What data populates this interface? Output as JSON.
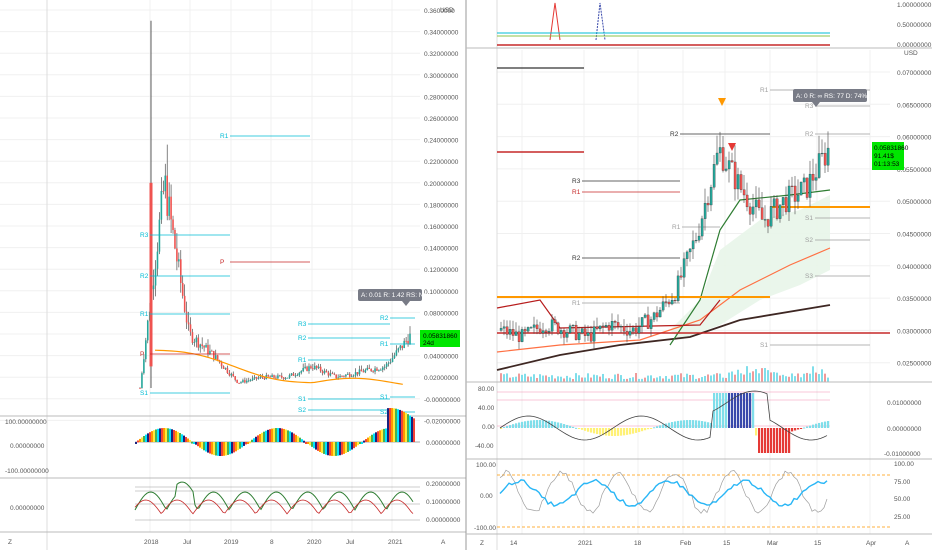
{
  "colors": {
    "up": "#26a69a",
    "down": "#ef5350",
    "accent_orange": "#ff9800",
    "cyan": "#00bcd4",
    "red": "#c62828",
    "price_badge": "#00e600",
    "tooltip_bg": "#787b86"
  },
  "left_panel": {
    "currency": "USD",
    "price_labels": [
      "0.3600000",
      "0.34000000",
      "0.32000000",
      "0.30000000",
      "0.28000000",
      "0.26000000",
      "0.24000000",
      "0.22000000",
      "0.20000000",
      "0.18000000",
      "0.16000000",
      "0.14000000",
      "0.12000000",
      "0.10000000",
      "0.08000000",
      "0.06000000",
      "0.04000000",
      "0.02000000",
      "-0.00000000",
      "-0.02000000"
    ],
    "price_badge": {
      "value": "0.05831860",
      "sub": "24d"
    },
    "tooltip": "A: 0.01 R: 1.42 RS: Na",
    "levels": [
      {
        "label": "R1",
        "color": "#00bcd4"
      },
      {
        "label": "R3",
        "color": "#00bcd4"
      },
      {
        "label": "R2",
        "color": "#00bcd4"
      },
      {
        "label": "P",
        "color": "#c62828"
      },
      {
        "label": "R1",
        "color": "#00bcd4"
      },
      {
        "label": "P",
        "color": "#c62828"
      },
      {
        "label": "R3",
        "color": "#00bcd4"
      },
      {
        "label": "R2",
        "color": "#00bcd4"
      },
      {
        "label": "R1",
        "color": "#00bcd4"
      },
      {
        "label": "R2",
        "color": "#00bcd4"
      },
      {
        "label": "R1",
        "color": "#00bcd4"
      },
      {
        "label": "S1",
        "color": "#00bcd4"
      },
      {
        "label": "S2",
        "color": "#00bcd4"
      },
      {
        "label": "S1",
        "color": "#00bcd4"
      },
      {
        "label": "S2",
        "color": "#00bcd4"
      },
      {
        "label": "S1",
        "color": "#00bcd4"
      }
    ],
    "osc1_labels": [
      "100.00000000",
      "0.00000000",
      "-100.00000000"
    ],
    "osc1_right": "0.00000000",
    "osc2_left": "0.00000000",
    "osc2_right": [
      "0.20000000",
      "0.10000000",
      "0.00000000"
    ],
    "time_labels": [
      "2018",
      "Jul",
      "2019",
      "8",
      "2020",
      "Jul",
      "2021"
    ],
    "corner_left": "Z",
    "corner_right": "A"
  },
  "right_panel": {
    "currency": "USD",
    "top_labels": [
      "1.00000000",
      "0.50000000",
      "0.00000000"
    ],
    "price_labels": [
      "0.07000000",
      "0.06500000",
      "0.06000000",
      "0.05500000",
      "0.05000000",
      "0.04500000",
      "0.04000000",
      "0.03500000",
      "0.03000000",
      "0.02500000"
    ],
    "price_badge": {
      "value": "0.05831860",
      "line2": "91.41$",
      "line3": "01:13:53"
    },
    "tooltip": "A: 0 R: ∞ RS: 77 D: 74%",
    "levels": [
      {
        "label": "R1",
        "color": "#9e9e9e"
      },
      {
        "label": "R3",
        "color": "#9e9e9e"
      },
      {
        "label": "R2",
        "color": "#333333"
      },
      {
        "label": "R2",
        "color": "#9e9e9e"
      },
      {
        "label": "R3",
        "color": "#333333"
      },
      {
        "label": "R1",
        "color": "#c62828"
      },
      {
        "label": "S1",
        "color": "#9e9e9e"
      },
      {
        "label": "R1",
        "color": "#9e9e9e"
      },
      {
        "label": "S2",
        "color": "#9e9e9e"
      },
      {
        "label": "R2",
        "color": "#333333"
      },
      {
        "label": "S3",
        "color": "#9e9e9e"
      },
      {
        "label": "R1",
        "color": "#9e9e9e"
      },
      {
        "label": "S1",
        "color": "#9e9e9e"
      }
    ],
    "osc1_left": [
      "80.00",
      "40.00",
      "0.00",
      "-40.00"
    ],
    "osc1_right": [
      "0.01000000",
      "0.00000000",
      "-0.01000000"
    ],
    "osc2_left": [
      "100.00",
      "0.00",
      "-100.00"
    ],
    "osc2_right": [
      "100.00",
      "75.00",
      "50.00",
      "25.00"
    ],
    "time_labels": [
      "14",
      "2021",
      "18",
      "Feb",
      "15",
      "Mar",
      "15",
      "Apr"
    ],
    "corner_left": "Z",
    "corner_right": "A"
  },
  "chart_data": [
    {
      "type": "candlestick",
      "title": "",
      "ylabel": "USD",
      "ylim": [
        -0.02,
        0.36
      ],
      "x": [
        "2018",
        "Jul",
        "2019",
        "8",
        "2020",
        "Jul",
        "2021"
      ],
      "approx_close": [
        0.01,
        0.2,
        0.06,
        0.04,
        0.015,
        0.02,
        0.02,
        0.03,
        0.02,
        0.025,
        0.03,
        0.058
      ],
      "peak": 0.35,
      "last": 0.0583186
    },
    {
      "type": "candlestick",
      "title": "",
      "ylabel": "USD",
      "ylim": [
        0.02,
        0.072
      ],
      "x": [
        "14",
        "2021",
        "18",
        "Feb",
        "15",
        "Mar",
        "15",
        "Apr"
      ],
      "approx_close": [
        0.03,
        0.029,
        0.031,
        0.03,
        0.029,
        0.031,
        0.03,
        0.032,
        0.036,
        0.045,
        0.058,
        0.052,
        0.047,
        0.05,
        0.052,
        0.058
      ],
      "last": 0.0583186
    }
  ]
}
